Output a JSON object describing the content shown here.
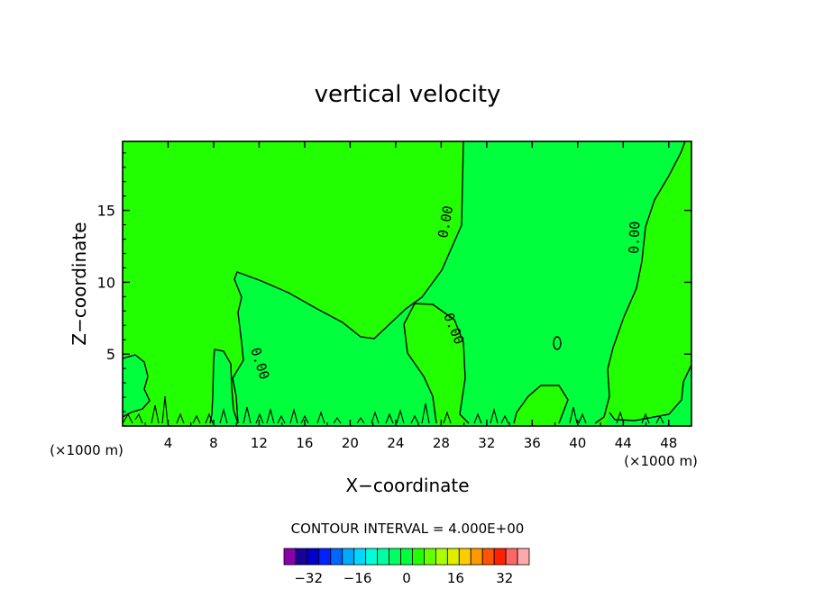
{
  "chart_data": {
    "type": "heatmap",
    "title": "vertical velocity",
    "xlabel": "X−coordinate",
    "ylabel": "Z−coordinate",
    "x_unit_left": "(×1000 m)",
    "x_unit_right": "(×1000 m)",
    "xlim": [
      0,
      50
    ],
    "ylim": [
      0,
      19.8
    ],
    "x_ticks": [
      4,
      8,
      12,
      16,
      20,
      24,
      28,
      32,
      36,
      40,
      44,
      48
    ],
    "y_ticks": [
      5,
      10,
      15
    ],
    "contour_interval_label": "CONTOUR INTERVAL = 4.000E+00",
    "contour_level": 0,
    "contour_labels": [
      {
        "text": "0.00",
        "x": 11.5,
        "z": 4.5
      },
      {
        "text": "0.00",
        "x": 29.0,
        "z": 14.2
      },
      {
        "text": "0.00",
        "x": 28.5,
        "z": 6.5
      },
      {
        "text": "0.00",
        "x": 45.2,
        "z": 13.2
      }
    ],
    "field_regions": [
      {
        "id": "positive-upper",
        "sign": "positive",
        "color": "#22ff00"
      },
      {
        "id": "negative-lower",
        "sign": "negative",
        "color": "#00ff3c"
      }
    ],
    "colorbar": {
      "levels": [
        -40,
        -36,
        -32,
        -28,
        -24,
        -20,
        -16,
        -12,
        -8,
        -4,
        0,
        4,
        8,
        12,
        16,
        20,
        24,
        28,
        32,
        36,
        40
      ],
      "colors": [
        "#8800aa",
        "#1a0099",
        "#0000cc",
        "#0022ff",
        "#0066ff",
        "#00aaff",
        "#00d8ff",
        "#00ffd8",
        "#00ffa0",
        "#00ff60",
        "#00ff3c",
        "#22ff00",
        "#66ff00",
        "#aaff00",
        "#ddee00",
        "#ffcc00",
        "#ff9900",
        "#ff5500",
        "#ff2200",
        "#ff6666",
        "#ffaaaa"
      ],
      "tick_labels": [
        "−32",
        "−16",
        "0",
        "16",
        "32"
      ],
      "tick_values": [
        -32,
        -16,
        0,
        16,
        32
      ]
    }
  }
}
